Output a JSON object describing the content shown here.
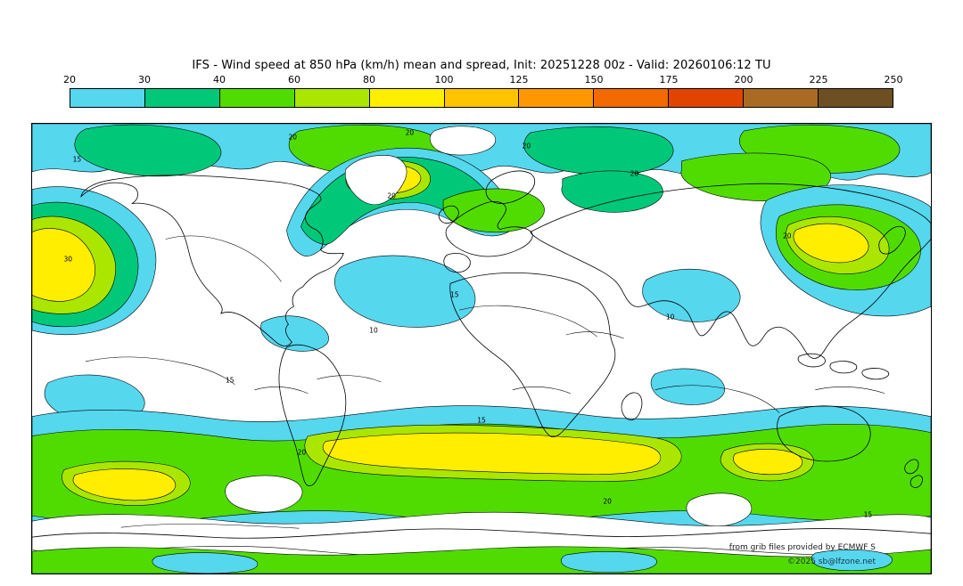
{
  "header": {
    "title": "IFS - Wind speed at 850 hPa (km/h) mean and spread, Init: 20251228 00z - Valid: 20260106:12 TU"
  },
  "chart_data": {
    "type": "heatmap",
    "title": "IFS - Wind speed at 850 hPa (km/h) mean and spread, Init: 20251228 00z - Valid: 20260106:12 TU",
    "model": "IFS",
    "variable": "Wind speed at 850 hPa (km/h) mean and spread",
    "init": "20251228 00z",
    "valid": "20260106:12 TU",
    "projection": "equirectangular world map, 90N-90S, whole globe",
    "legend_position": "top horizontal colorbar",
    "colorbar": {
      "unit": "km/h",
      "ticks": [
        "20",
        "30",
        "40",
        "60",
        "80",
        "100",
        "125",
        "150",
        "175",
        "200",
        "225",
        "250"
      ],
      "colors": [
        "#55d7ee",
        "#00c878",
        "#50dc00",
        "#aae600",
        "#ffee00",
        "#ffc300",
        "#ff9800",
        "#f26a00",
        "#e04400",
        "#a96a24",
        "#6e4f23"
      ]
    },
    "filled_field_note": "Ensemble-mean wind speed filled: cyan 20-30, green 30-40, bright green 40-60, yellow-green 60-80, yellow 80-100 km/h; strongest cores over N Pacific, NW Atlantic, NW Pacific and Southern Ocean.",
    "contour_field_note": "Thin black contours with small numeric labels (ensemble spread).",
    "contour_labels": [
      {
        "v": "15",
        "x": 5,
        "y": 8
      },
      {
        "v": "20",
        "x": 29,
        "y": 3
      },
      {
        "v": "20",
        "x": 42,
        "y": 2
      },
      {
        "v": "20",
        "x": 55,
        "y": 5
      },
      {
        "v": "20",
        "x": 67,
        "y": 11
      },
      {
        "v": "20",
        "x": 40,
        "y": 16
      },
      {
        "v": "30",
        "x": 4,
        "y": 30
      },
      {
        "v": "20",
        "x": 84,
        "y": 25
      },
      {
        "v": "15",
        "x": 47,
        "y": 38
      },
      {
        "v": "10",
        "x": 71,
        "y": 43
      },
      {
        "v": "10",
        "x": 38,
        "y": 46
      },
      {
        "v": "15",
        "x": 22,
        "y": 57
      },
      {
        "v": "15",
        "x": 50,
        "y": 66
      },
      {
        "v": "20",
        "x": 30,
        "y": 73
      },
      {
        "v": "20",
        "x": 64,
        "y": 84
      },
      {
        "v": "15",
        "x": 93,
        "y": 87
      }
    ]
  },
  "credits": {
    "line1": "from grib files provided by ECMWF S",
    "line2": "©2025 sb@lfzone.net"
  }
}
